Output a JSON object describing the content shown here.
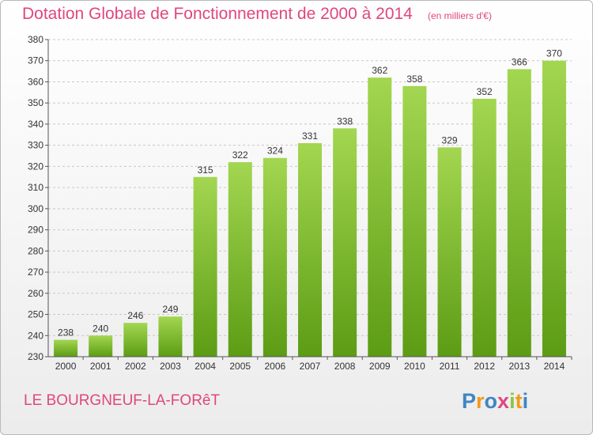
{
  "header": {
    "title": "Dotation Globale de Fonctionnement de 2000 à 2014",
    "unit_note": "(en milliers d'€)"
  },
  "footer": {
    "commune": "LE BOURGNEUF-LA-FORêT",
    "logo_text": "Proxiti"
  },
  "colors": {
    "accent": "#e0467f",
    "bar_light": "#a3d651",
    "bar_dark": "#5c9c14",
    "grid": "#c8c8c8"
  },
  "chart_data": {
    "type": "bar",
    "categories": [
      "2000",
      "2001",
      "2002",
      "2003",
      "2004",
      "2005",
      "2006",
      "2007",
      "2008",
      "2009",
      "2010",
      "2011",
      "2012",
      "2013",
      "2014"
    ],
    "values": [
      238,
      240,
      246,
      249,
      315,
      322,
      324,
      331,
      338,
      362,
      358,
      329,
      352,
      366,
      370
    ],
    "ylim": [
      230,
      380
    ],
    "ytick_step": 10,
    "grid": true,
    "data_labels": true
  }
}
